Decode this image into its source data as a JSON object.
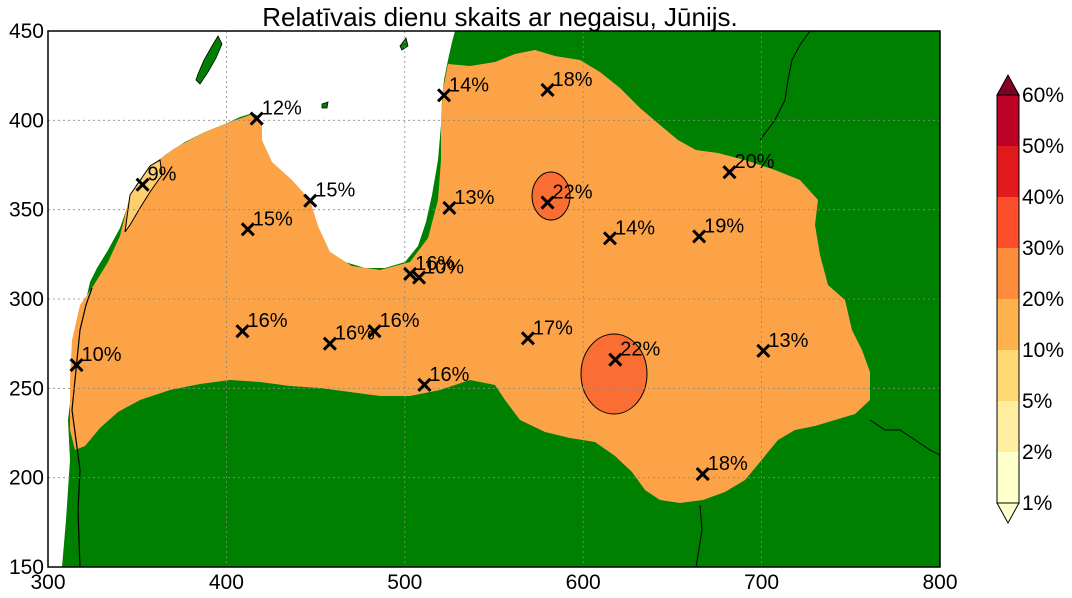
{
  "chart_data": {
    "type": "contour-map",
    "title": "Relatīvais dienu skaits ar negaisu, Jūnijs.",
    "xlim": [
      300,
      800
    ],
    "ylim": [
      150,
      450
    ],
    "xticks": [
      300,
      400,
      500,
      600,
      700,
      800
    ],
    "yticks": [
      150,
      200,
      250,
      300,
      350,
      400,
      450
    ],
    "grid": true,
    "colors": {
      "land_outside": "#008000",
      "sea": "#ffffff",
      "latvia_fill": "#fca347",
      "low_region_fill": "#fdd06f",
      "hotspot_fill": "#fa6e34"
    },
    "stations": [
      {
        "x": 353,
        "y": 364,
        "label": "9%"
      },
      {
        "x": 417,
        "y": 401,
        "label": "12%"
      },
      {
        "x": 447,
        "y": 355,
        "label": "15%"
      },
      {
        "x": 412,
        "y": 339,
        "label": "15%"
      },
      {
        "x": 522,
        "y": 414,
        "label": "14%"
      },
      {
        "x": 580,
        "y": 417,
        "label": "18%"
      },
      {
        "x": 525,
        "y": 351,
        "label": "13%"
      },
      {
        "x": 580,
        "y": 354,
        "label": "22%"
      },
      {
        "x": 682,
        "y": 371,
        "label": "20%"
      },
      {
        "x": 615,
        "y": 334,
        "label": "14%"
      },
      {
        "x": 665,
        "y": 335,
        "label": "19%"
      },
      {
        "x": 508,
        "y": 312,
        "label": "10%"
      },
      {
        "x": 503,
        "y": 314,
        "label": "16%"
      },
      {
        "x": 316,
        "y": 263,
        "label": "10%"
      },
      {
        "x": 409,
        "y": 282,
        "label": "16%"
      },
      {
        "x": 458,
        "y": 275,
        "label": "16%"
      },
      {
        "x": 483,
        "y": 282,
        "label": "16%"
      },
      {
        "x": 511,
        "y": 252,
        "label": "16%"
      },
      {
        "x": 569,
        "y": 278,
        "label": "17%"
      },
      {
        "x": 618,
        "y": 266,
        "label": "22%"
      },
      {
        "x": 701,
        "y": 271,
        "label": "13%"
      },
      {
        "x": 667,
        "y": 202,
        "label": "18%"
      }
    ],
    "colorbar": {
      "levels": [
        "1%",
        "2%",
        "5%",
        "10%",
        "20%",
        "30%",
        "40%",
        "50%",
        "60%"
      ],
      "colors": [
        "#ffffcc",
        "#ffeda0",
        "#fed976",
        "#feb24c",
        "#fd8d3c",
        "#fc4e2a",
        "#e31a1c",
        "#bd0026",
        "#800026"
      ],
      "extend": "both"
    }
  }
}
